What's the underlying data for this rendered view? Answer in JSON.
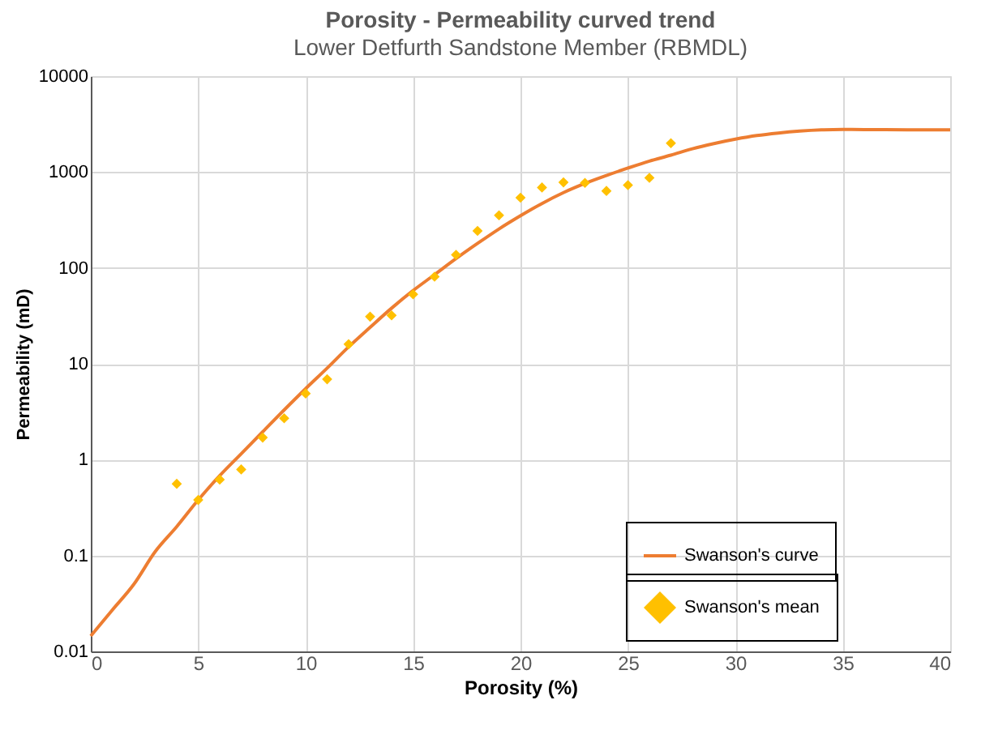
{
  "chart_data": {
    "type": "line",
    "title": "Porosity - Permeability curved trend",
    "subtitle": "Lower Detfurth Sandstone Member (RBMDL)",
    "xlabel": "Porosity (%)",
    "ylabel": "Permeability (mD)",
    "series": [
      {
        "name": "Swanson's curve",
        "color": "#ed7d31",
        "marker": "none",
        "line_style": "solid",
        "x": [
          0,
          1,
          2,
          3,
          4,
          5,
          6,
          7,
          8,
          9,
          10,
          11,
          12,
          13,
          14,
          15,
          16,
          17,
          18,
          19,
          20,
          21,
          22,
          23,
          24,
          25,
          26,
          27,
          28,
          29,
          30,
          31,
          32,
          33,
          34,
          35,
          36,
          38,
          40
        ],
        "values": [
          0.0145,
          0.027,
          0.05,
          0.11,
          0.2,
          0.38,
          0.68,
          1.15,
          1.95,
          3.3,
          5.5,
          9,
          15,
          24,
          38,
          58,
          85,
          125,
          180,
          255,
          350,
          470,
          610,
          760,
          920,
          1100,
          1300,
          1500,
          1750,
          1980,
          2200,
          2400,
          2550,
          2670,
          2750,
          2780,
          2770,
          2760,
          2750
        ]
      },
      {
        "name": "Swanson's mean",
        "type": "scatter",
        "color": "#ffc000",
        "marker": "diamond",
        "x": [
          4,
          5,
          6,
          7,
          8,
          9,
          10,
          11,
          12,
          13,
          14,
          15,
          16,
          17,
          18,
          19,
          20,
          21,
          22,
          23,
          24,
          25,
          26,
          27
        ],
        "values": [
          0.56,
          0.38,
          0.62,
          0.79,
          1.7,
          2.7,
          4.9,
          6.9,
          16,
          31,
          32,
          53,
          81,
          137,
          243,
          354,
          540,
          690,
          780,
          770,
          635,
          730,
          870,
          2000
        ]
      }
    ],
    "xlim": [
      0,
      40
    ],
    "xticks": [
      0,
      5,
      10,
      15,
      20,
      25,
      30,
      35,
      40
    ],
    "ylim": [
      0.01,
      10000
    ],
    "yticks": [
      0.01,
      0.1,
      1,
      10,
      100,
      1000,
      10000
    ],
    "log": "y",
    "grid": true,
    "legend": "bottom right"
  }
}
